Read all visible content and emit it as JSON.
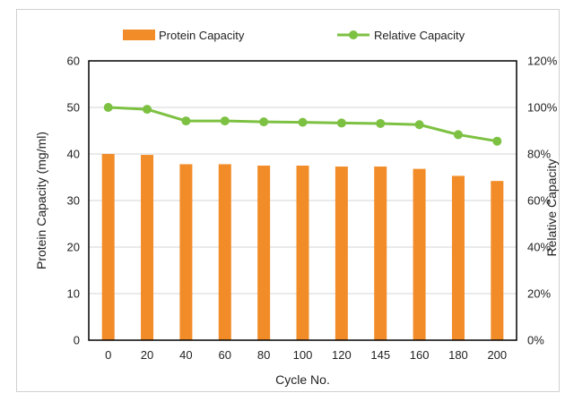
{
  "chart_data": {
    "type": "bar",
    "categories": [
      "0",
      "20",
      "40",
      "60",
      "80",
      "100",
      "120",
      "145",
      "160",
      "180",
      "200"
    ],
    "series": [
      {
        "name": "Protein Capacity",
        "type": "bar",
        "axis": "left",
        "color": "#F28C28",
        "values": [
          40.0,
          39.8,
          37.8,
          37.8,
          37.5,
          37.5,
          37.3,
          37.3,
          36.8,
          35.3,
          34.2
        ]
      },
      {
        "name": "Relative Capacity",
        "type": "line",
        "axis": "right",
        "color": "#7DC142",
        "values": [
          100,
          99.2,
          94.2,
          94.2,
          93.8,
          93.6,
          93.3,
          93.1,
          92.6,
          88.3,
          85.5
        ]
      }
    ],
    "xlabel": "Cycle No.",
    "ylabel": "Protein Capacity   (mg/ml)",
    "ylabel_right": "Relative Capacity",
    "ylim": [
      0,
      60
    ],
    "yticks": [
      "0",
      "10",
      "20",
      "30",
      "40",
      "50",
      "60"
    ],
    "ylim_right": [
      0,
      120
    ],
    "yticks_right": [
      "0%",
      "20%",
      "40%",
      "60%",
      "80%",
      "100%",
      "120%"
    ],
    "grid": "horizontal",
    "legend": "top"
  }
}
